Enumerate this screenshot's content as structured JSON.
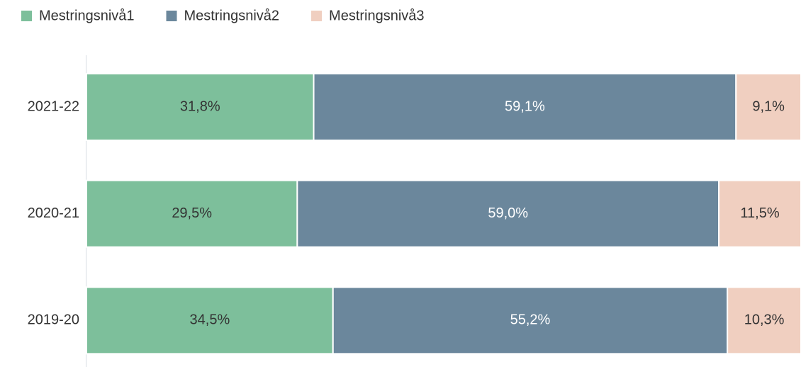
{
  "chart_data": {
    "type": "stacked-bar-horizontal",
    "categories": [
      "2021-22",
      "2020-21",
      "2019-20"
    ],
    "series": [
      {
        "name": "Mestringsnivå1",
        "color": "#7dbf9b",
        "values": [
          31.8,
          29.5,
          34.5
        ],
        "value_labels": [
          "31,8%",
          "29,5%",
          "34,5%"
        ]
      },
      {
        "name": "Mestringsnivå2",
        "color": "#6b879c",
        "values": [
          59.1,
          59.0,
          55.2
        ],
        "value_labels": [
          "59,1%",
          "59,0%",
          "55,2%"
        ]
      },
      {
        "name": "Mestringsnivå3",
        "color": "#f0cfc0",
        "values": [
          9.1,
          11.5,
          10.3
        ],
        "value_labels": [
          "9,1%",
          "11,5%",
          "10,3%"
        ]
      }
    ],
    "legend": "top-left"
  }
}
